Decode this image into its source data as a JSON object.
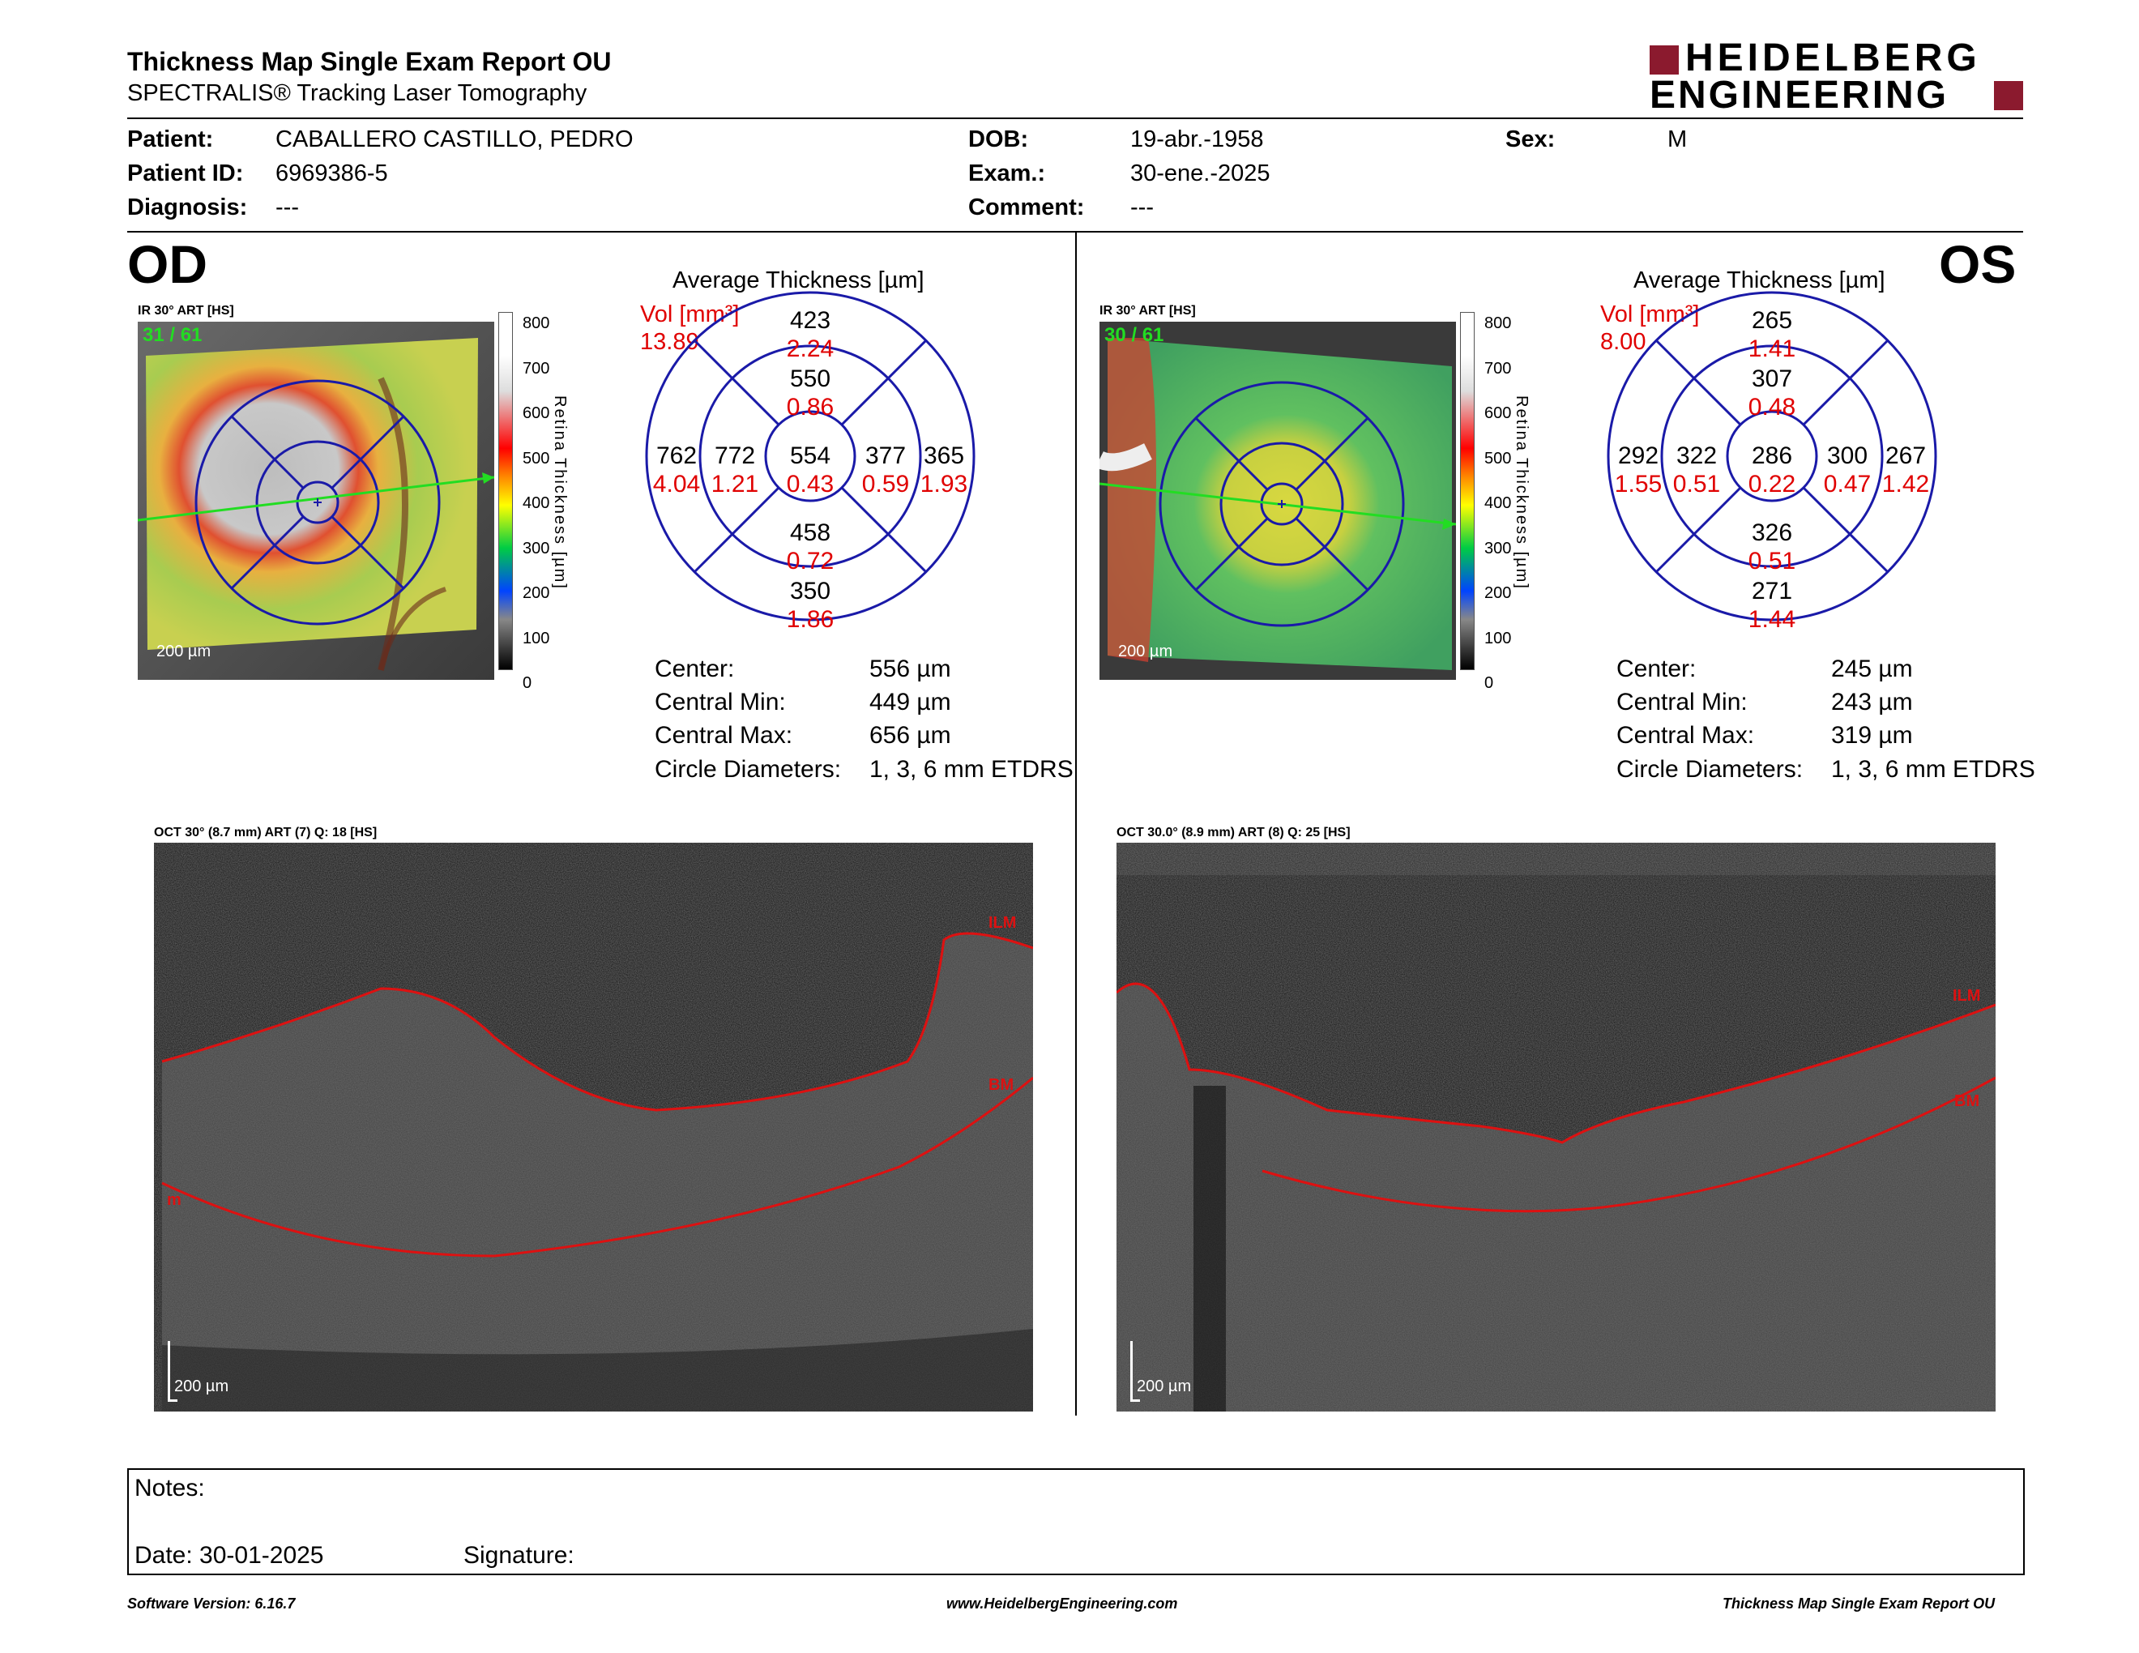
{
  "header": {
    "title": "Thickness Map Single Exam Report OU",
    "subtitle": "SPECTRALIS® Tracking Laser Tomography",
    "logo_line1": "HEIDELBERG",
    "logo_line2": "ENGINEERING",
    "logo_color": "#8b1a2e"
  },
  "patient": {
    "patient_label": "Patient:",
    "patient_value": "CABALLERO CASTILLO, PEDRO",
    "id_label": "Patient ID:",
    "id_value": "6969386-5",
    "diagnosis_label": "Diagnosis:",
    "diagnosis_value": "---",
    "dob_label": "DOB:",
    "dob_value": "19-abr.-1958",
    "exam_label": "Exam.:",
    "exam_value": "30-ene.-2025",
    "comment_label": "Comment:",
    "comment_value": "---",
    "sex_label": "Sex:",
    "sex_value": "M"
  },
  "colorbar": {
    "ticks": [
      "800",
      "700",
      "600",
      "500",
      "400",
      "300",
      "200",
      "100",
      "0"
    ],
    "label": "Retina Thickness [µm]"
  },
  "od": {
    "eye": "OD",
    "ir_caption": "IR 30° ART [HS]",
    "ir_counter": "31 / 61",
    "ir_scale": "200 µm",
    "avg_title": "Average Thickness [µm]",
    "vol_label": "Vol [mm³]",
    "vol_value": "13.89",
    "grid": {
      "center": {
        "t": "554",
        "v": "0.43"
      },
      "inner_sup": {
        "t": "550",
        "v": "0.86"
      },
      "inner_inf": {
        "t": "458",
        "v": "0.72"
      },
      "inner_left": {
        "t": "772",
        "v": "1.21"
      },
      "inner_right": {
        "t": "377",
        "v": "0.59"
      },
      "outer_sup": {
        "t": "423",
        "v": "2.24"
      },
      "outer_inf": {
        "t": "350",
        "v": "1.86"
      },
      "outer_left": {
        "t": "762",
        "v": "4.04"
      },
      "outer_right": {
        "t": "365",
        "v": "1.93"
      }
    },
    "stats": {
      "center_label": "Center:",
      "center_value": "556 µm",
      "min_label": "Central Min:",
      "min_value": "449 µm",
      "max_label": "Central Max:",
      "max_value": "656 µm",
      "diam_label": "Circle Diameters:",
      "diam_value": "1, 3, 6 mm ETDRS"
    },
    "oct_caption": "OCT 30° (8.7 mm) ART (7) Q: 18 [HS]",
    "oct_ilm": "ILM",
    "oct_bm": "BM",
    "oct_m": "m",
    "oct_scale": "200 µm"
  },
  "os": {
    "eye": "OS",
    "ir_caption": "IR 30° ART [HS]",
    "ir_counter": "30 / 61",
    "ir_scale": "200 µm",
    "avg_title": "Average Thickness [µm]",
    "vol_label": "Vol [mm³]",
    "vol_value": "8.00",
    "grid": {
      "center": {
        "t": "286",
        "v": "0.22"
      },
      "inner_sup": {
        "t": "307",
        "v": "0.48"
      },
      "inner_inf": {
        "t": "326",
        "v": "0.51"
      },
      "inner_left": {
        "t": "322",
        "v": "0.51"
      },
      "inner_right": {
        "t": "300",
        "v": "0.47"
      },
      "outer_sup": {
        "t": "265",
        "v": "1.41"
      },
      "outer_inf": {
        "t": "271",
        "v": "1.44"
      },
      "outer_left": {
        "t": "292",
        "v": "1.55"
      },
      "outer_right": {
        "t": "267",
        "v": "1.42"
      }
    },
    "stats": {
      "center_label": "Center:",
      "center_value": "245 µm",
      "min_label": "Central Min:",
      "min_value": "243 µm",
      "max_label": "Central Max:",
      "max_value": "319 µm",
      "diam_label": "Circle Diameters:",
      "diam_value": "1, 3, 6 mm ETDRS"
    },
    "oct_caption": "OCT 30.0° (8.9 mm) ART (8) Q: 25 [HS]",
    "oct_ilm": "ILM",
    "oct_bm": "BM",
    "oct_scale": "200 µm"
  },
  "notes": {
    "notes_label": "Notes:",
    "date_label": "Date: 30-01-2025",
    "signature_label": "Signature:"
  },
  "footer": {
    "version": "Software Version: 6.16.7",
    "website": "www.HeidelbergEngineering.com",
    "report": "Thickness Map Single Exam Report OU"
  },
  "colors": {
    "value_red": "#e00000",
    "grid_blue": "#1a1aa8",
    "scan_green": "#22dd22",
    "segment_red": "#dd1111"
  }
}
